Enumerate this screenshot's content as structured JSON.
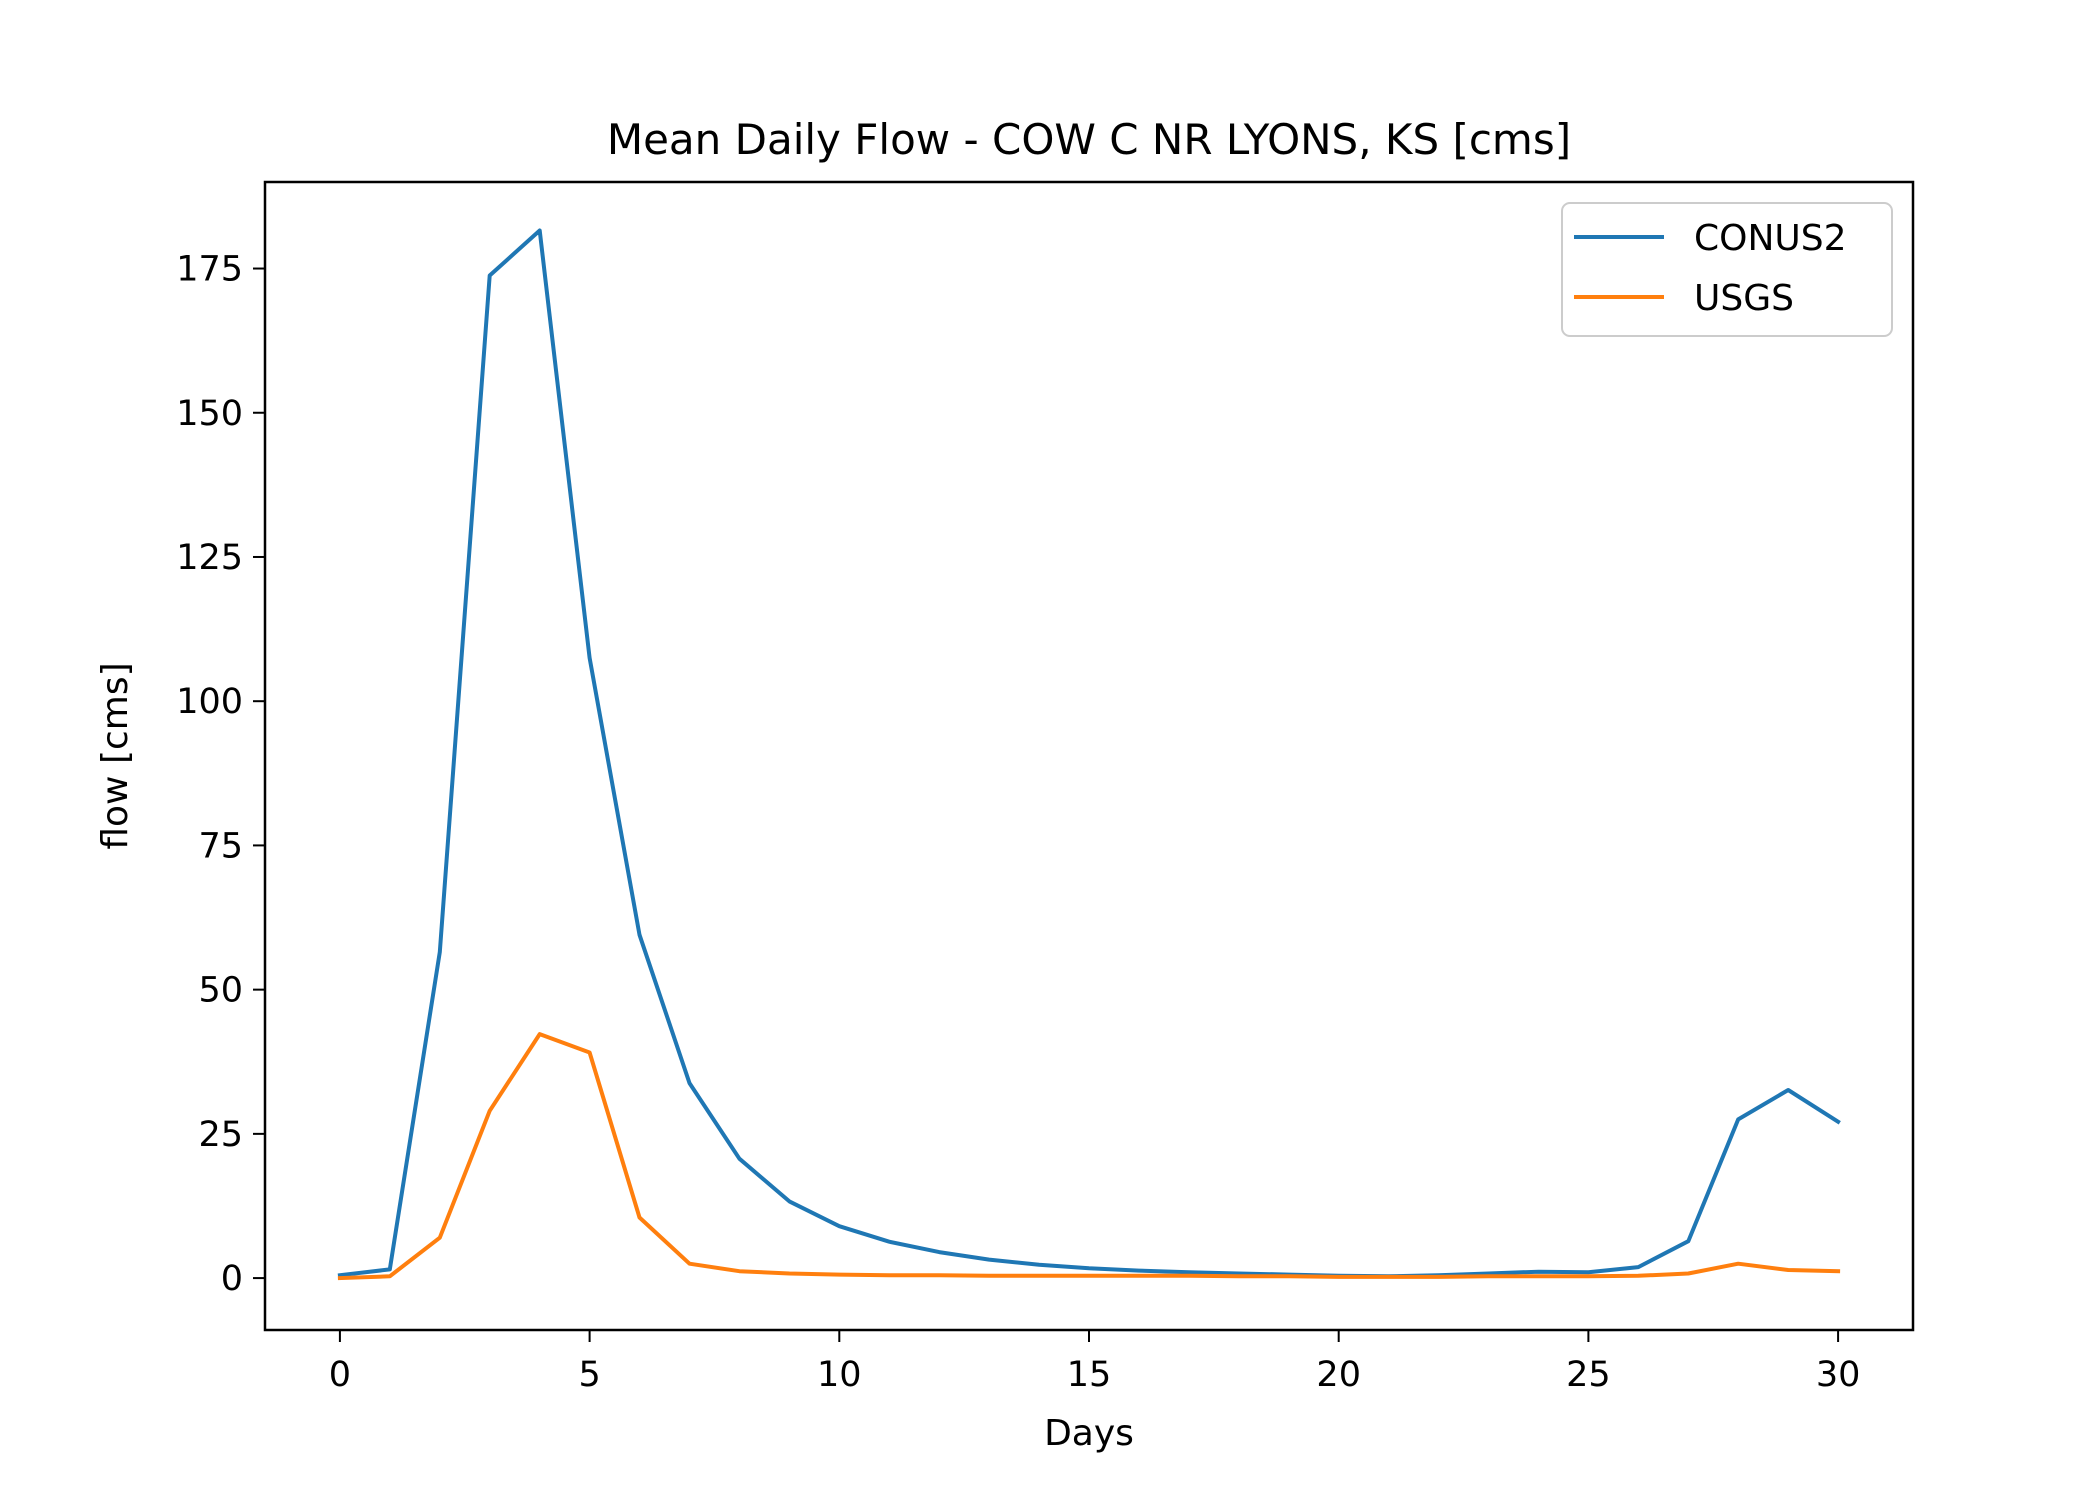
{
  "chart_data": {
    "type": "line",
    "title": "Mean Daily Flow - COW C NR LYONS, KS [cms]",
    "xlabel": "Days",
    "ylabel": "flow [cms]",
    "xlim": [
      -1.5,
      31.5
    ],
    "ylim": [
      -9,
      190
    ],
    "xticks": [
      0,
      5,
      10,
      15,
      20,
      25,
      30
    ],
    "yticks": [
      0,
      25,
      50,
      75,
      100,
      125,
      150,
      175
    ],
    "grid": false,
    "legend_position": "top-right",
    "x": [
      0,
      1,
      2,
      3,
      4,
      5,
      6,
      7,
      8,
      9,
      10,
      11,
      12,
      13,
      14,
      15,
      16,
      17,
      18,
      19,
      20,
      21,
      22,
      23,
      24,
      25,
      26,
      27,
      28,
      29,
      30
    ],
    "series": [
      {
        "name": "CONUS2",
        "color": "#1f77b4",
        "values": [
          0.5,
          1.5,
          56.5,
          173.8,
          181.6,
          107.5,
          59.5,
          33.8,
          20.7,
          13.3,
          9.0,
          6.3,
          4.5,
          3.2,
          2.3,
          1.7,
          1.3,
          1.0,
          0.8,
          0.6,
          0.4,
          0.3,
          0.5,
          0.8,
          1.1,
          1.0,
          1.9,
          6.4,
          27.5,
          32.6,
          27.1
        ]
      },
      {
        "name": "USGS",
        "color": "#ff7f0e",
        "values": [
          0.0,
          0.3,
          7.0,
          29.0,
          42.3,
          39.1,
          10.5,
          2.5,
          1.2,
          0.8,
          0.6,
          0.5,
          0.5,
          0.4,
          0.4,
          0.4,
          0.4,
          0.4,
          0.3,
          0.3,
          0.2,
          0.2,
          0.2,
          0.3,
          0.3,
          0.3,
          0.4,
          0.8,
          2.5,
          1.4,
          1.2
        ]
      }
    ]
  }
}
